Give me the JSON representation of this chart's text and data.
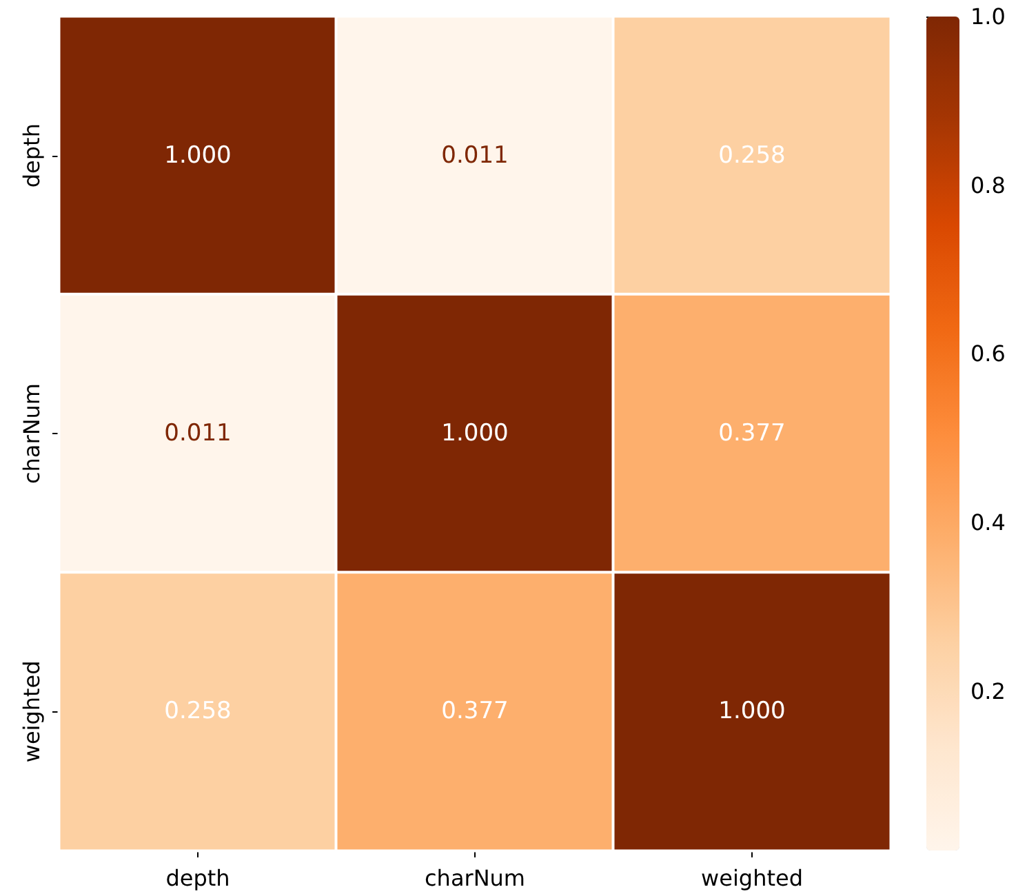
{
  "chart_data": {
    "type": "heatmap",
    "categories": [
      "depth",
      "charNum",
      "weighted"
    ],
    "y_categories": [
      "depth",
      "charNum",
      "weighted"
    ],
    "cells": [
      [
        1.0,
        0.011,
        0.258
      ],
      [
        0.011,
        1.0,
        0.377
      ],
      [
        0.258,
        0.377,
        1.0
      ]
    ],
    "cell_labels": [
      [
        "1.000",
        "0.011",
        "0.258"
      ],
      [
        "0.011",
        "1.000",
        "0.377"
      ],
      [
        "0.258",
        "0.377",
        "1.000"
      ]
    ],
    "clim": [
      0.011,
      1.0
    ],
    "cticks": [
      0.2,
      0.4,
      0.6,
      0.8,
      {
        "value": 1,
        "label": "1.0"
      }
    ]
  }
}
